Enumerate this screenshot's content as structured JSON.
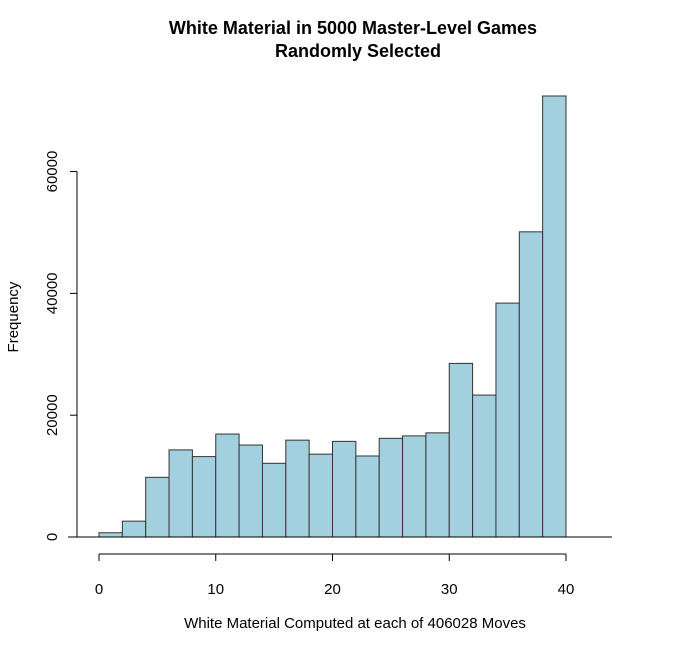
{
  "chart_data": {
    "type": "bar",
    "title_lines": [
      "White Material in 5000 Master-Level Games",
      "Randomly Selected"
    ],
    "xlabel": "White Material Computed at each of 406028 Moves",
    "ylabel": "Frequency",
    "bin_edges": [
      0,
      2,
      4,
      6,
      8,
      10,
      12,
      14,
      16,
      18,
      20,
      22,
      24,
      26,
      28,
      30,
      32,
      34,
      36,
      38,
      40
    ],
    "values": [
      700,
      2600,
      9800,
      14300,
      13200,
      16900,
      15100,
      12100,
      15900,
      13600,
      15700,
      13300,
      16200,
      16600,
      17100,
      28500,
      23300,
      38400,
      50100,
      72400
    ],
    "xticks": [
      0,
      10,
      20,
      30,
      40
    ],
    "yticks": [
      0,
      20000,
      40000,
      60000
    ],
    "xlim": [
      0,
      40
    ],
    "ylim": [
      0,
      72400
    ],
    "bar_color": "#a3d0df",
    "bar_edge_color": "#333333",
    "grid": false,
    "legend": "none"
  }
}
